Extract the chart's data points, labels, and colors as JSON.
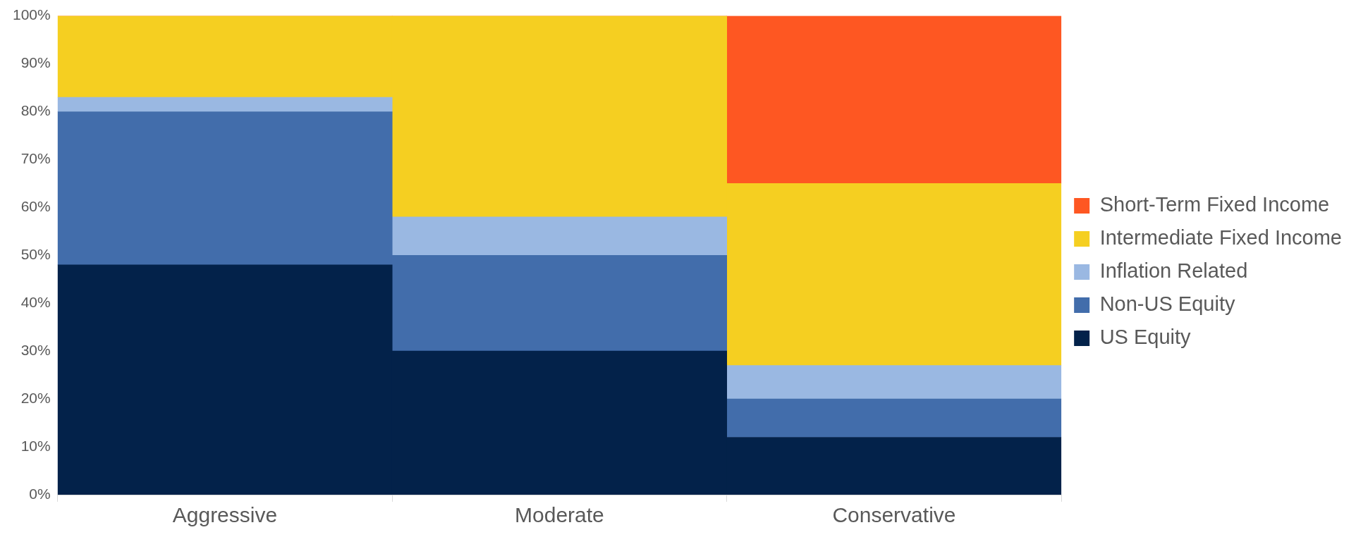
{
  "chart_data": {
    "type": "bar",
    "stacked": true,
    "categories": [
      "Aggressive",
      "Moderate",
      "Conservative"
    ],
    "series": [
      {
        "name": "US Equity",
        "color": "#03224a",
        "values": [
          48,
          30,
          12
        ]
      },
      {
        "name": "Non-US Equity",
        "color": "#426dab",
        "values": [
          32,
          20,
          8
        ]
      },
      {
        "name": "Inflation Related",
        "color": "#9ab8e2",
        "values": [
          3,
          8,
          7
        ]
      },
      {
        "name": "Intermediate Fixed Income",
        "color": "#f5cf21",
        "values": [
          17,
          42,
          38
        ]
      },
      {
        "name": "Short-Term Fixed Income",
        "color": "#fe5722",
        "values": [
          0,
          0,
          35
        ]
      }
    ],
    "ylim": [
      0,
      100
    ],
    "yticks": [
      {
        "value": 0,
        "label": "0%"
      },
      {
        "value": 10,
        "label": "10%"
      },
      {
        "value": 20,
        "label": "20%"
      },
      {
        "value": 30,
        "label": "30%"
      },
      {
        "value": 40,
        "label": "40%"
      },
      {
        "value": 50,
        "label": "50%"
      },
      {
        "value": 60,
        "label": "60%"
      },
      {
        "value": 70,
        "label": "70%"
      },
      {
        "value": 80,
        "label": "80%"
      },
      {
        "value": 90,
        "label": "90%"
      },
      {
        "value": 100,
        "label": "100%"
      }
    ],
    "grid": false,
    "legend": "right"
  }
}
